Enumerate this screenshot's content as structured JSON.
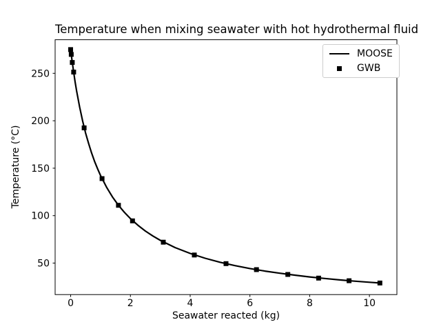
{
  "chart_data": {
    "type": "line",
    "title": "Temperature when mixing seawater with hot hydrothermal fluid",
    "xlabel": "Seawater reacted (kg)",
    "ylabel": "Temperature (°C)",
    "xlim": [
      -0.52,
      10.92
    ],
    "ylim": [
      16.8,
      285.4
    ],
    "xticks": [
      0,
      2,
      4,
      6,
      8,
      10
    ],
    "yticks": [
      50,
      100,
      150,
      200,
      250
    ],
    "grid": false,
    "legend": {
      "position": "upper right",
      "entries": [
        {
          "label": "MOOSE",
          "type": "line"
        },
        {
          "label": "GWB",
          "type": "square-marker"
        }
      ]
    },
    "colors": {
      "line": "#000000",
      "marker": "#000000",
      "frame": "#000000",
      "tick": "#000000",
      "legend_border": "#cccccc",
      "background": "#ffffff"
    },
    "series": [
      {
        "name": "MOOSE",
        "type": "line",
        "x": [
          0,
          0.05,
          0.1,
          0.15,
          0.2,
          0.3,
          0.4,
          0.5,
          0.6,
          0.7,
          0.8,
          0.9,
          1.0,
          1.2,
          1.4,
          1.6,
          1.8,
          2.0,
          2.25,
          2.5,
          2.75,
          3.0,
          3.5,
          4.0,
          4.5,
          5.0,
          5.5,
          6.0,
          6.5,
          7.0,
          7.5,
          8.0,
          8.5,
          9.0,
          9.5,
          10.0,
          10.35
        ],
        "y": [
          275,
          262.6,
          251.3,
          240.9,
          231.3,
          214.4,
          199.8,
          187.1,
          176.0,
          166.1,
          157.3,
          149.4,
          142.3,
          130.0,
          119.7,
          110.9,
          103.4,
          96.9,
          89.9,
          83.8,
          78.6,
          74.0,
          66.3,
          60.2,
          55.1,
          50.9,
          47.3,
          44.3,
          41.6,
          39.3,
          37.3,
          35.4,
          33.8,
          32.3,
          31.0,
          29.8,
          29.0
        ]
      },
      {
        "name": "GWB",
        "type": "scatter",
        "marker": "square",
        "x": [
          0.0,
          0.02,
          0.055,
          0.1,
          0.45,
          1.05,
          1.6,
          2.07,
          3.1,
          4.14,
          5.2,
          6.22,
          7.27,
          8.3,
          9.32,
          10.35
        ],
        "y": [
          275.0,
          269.9,
          261.4,
          251.3,
          192.5,
          139.0,
          110.9,
          94.5,
          72.0,
          58.5,
          49.4,
          43.1,
          38.0,
          34.2,
          31.4,
          29.0
        ]
      }
    ]
  }
}
